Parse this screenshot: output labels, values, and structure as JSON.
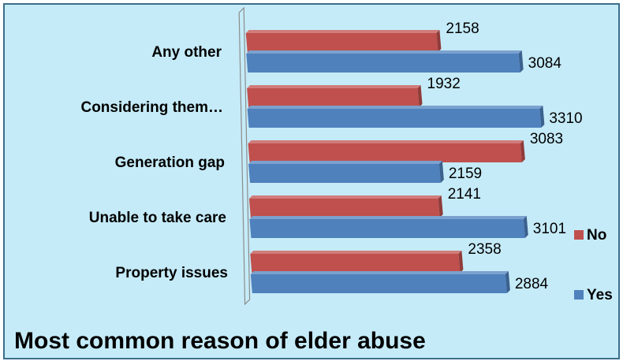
{
  "chart_data": {
    "type": "bar",
    "orientation": "horizontal",
    "three_d": true,
    "title": "Most common reason of elder abuse",
    "categories": [
      "Any other",
      "Considering them…",
      "Generation gap",
      "Unable to take care",
      "Property issues"
    ],
    "series": [
      {
        "name": "No",
        "color": "#c0504d",
        "values": [
          2158,
          1932,
          3083,
          2141,
          2358
        ]
      },
      {
        "name": "Yes",
        "color": "#4f81bd",
        "values": [
          3084,
          3310,
          2159,
          3101,
          2884
        ]
      }
    ],
    "legend_position": "right",
    "grid": false,
    "xlim": [
      0,
      3500
    ]
  }
}
